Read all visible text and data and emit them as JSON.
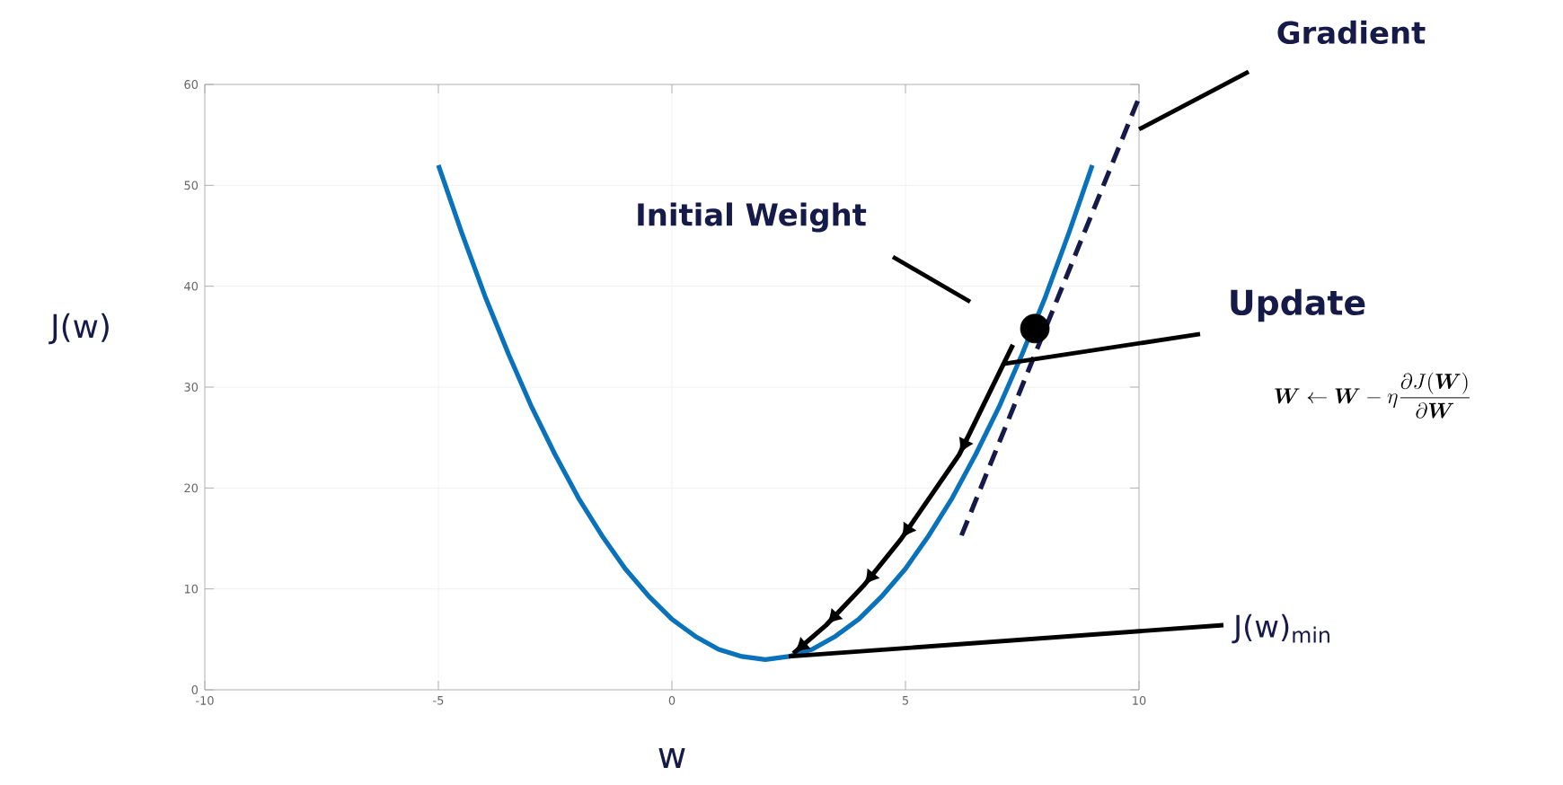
{
  "chart_data": {
    "type": "line",
    "xlabel": "w",
    "ylabel": "J(w)",
    "xlim": [
      -10,
      10
    ],
    "ylim": [
      0,
      60
    ],
    "xticks": [
      -10,
      -5,
      0,
      5,
      10
    ],
    "yticks": [
      0,
      10,
      20,
      30,
      40,
      50,
      60
    ],
    "grid": true,
    "series": [
      {
        "color": "#0a72ba",
        "x": [
          -5,
          -4.5,
          -4,
          -3.5,
          -3,
          -2.5,
          -2,
          -1.5,
          -1,
          -0.5,
          0,
          0.5,
          1,
          1.5,
          2,
          2.5,
          3,
          3.5,
          4,
          4.5,
          5,
          5.5,
          6,
          6.5,
          7,
          7.5,
          8,
          8.5,
          9
        ],
        "values": [
          52,
          45.3,
          39,
          33.3,
          28,
          23.3,
          19,
          15.3,
          12,
          9.3,
          7,
          5.3,
          4,
          3.3,
          3,
          3.3,
          4,
          5.3,
          7,
          9.3,
          12,
          15.3,
          19,
          23.3,
          28,
          33.3,
          39,
          45.3,
          52
        ]
      },
      {
        "color": "#161a48",
        "line_style": "dashed",
        "x": [
          6.2,
          10
        ],
        "values": [
          15.3,
          58.7
        ]
      },
      {
        "color": "#000000",
        "x": [
          7.3,
          6.15,
          4.9,
          4.1,
          3.3,
          2.6
        ],
        "values": [
          34.2,
          23.3,
          14.9,
          10.3,
          6.4,
          3.6
        ]
      },
      {
        "type": "scatter",
        "color": "#000000",
        "marker": "circle",
        "x": [
          7.77
        ],
        "values": [
          35.8
        ]
      }
    ],
    "annotations": [
      "Gradient",
      "Initial Weight",
      {
        "text": "Update",
        "x": 7.1,
        "y": 32.3
      },
      "\\boldsymbol{W} \\leftarrow \\boldsymbol{W} - \\eta \\frac{\\partial J(\\boldsymbol{W})}{\\partial \\boldsymbol{W}}",
      {
        "text": "J(w)$_{min}$",
        "x": 2.5,
        "y": 3.3
      }
    ]
  }
}
